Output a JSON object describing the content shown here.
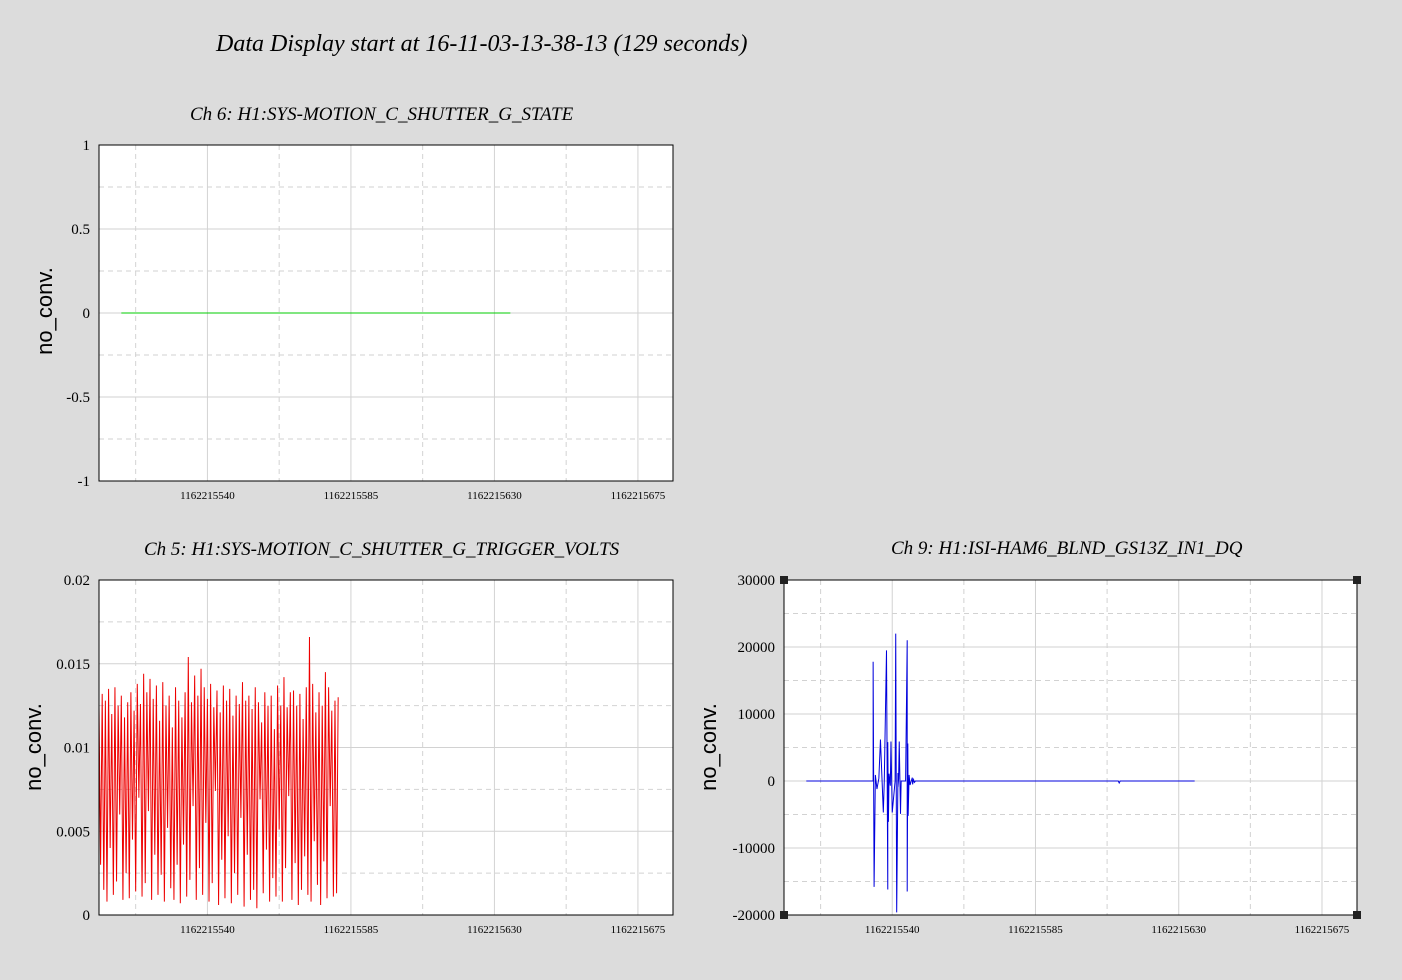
{
  "page_title": "Data Display start at 16-11-03-13-38-13 (129 seconds)",
  "chart_data": [
    {
      "id": "ch6",
      "type": "line",
      "title": "Ch 6: H1:SYS-MOTION_C_SHUTTER_G_STATE",
      "ylabel": "no_conv.",
      "xlim": [
        1162215506,
        1162215686
      ],
      "ylim": [
        -1,
        1
      ],
      "yticks": [
        1,
        0.5,
        0,
        -0.5,
        -1
      ],
      "ytick_labels": [
        "1",
        "0.5",
        "0",
        "-0.5",
        "-1"
      ],
      "xticks": [
        1162215540,
        1162215585,
        1162215630,
        1162215675
      ],
      "xtick_labels": [
        "1162215540",
        "1162215585",
        "1162215630",
        "1162215675"
      ],
      "grid": true,
      "series": [
        {
          "color": "#00cc00",
          "x": [
            1162215513,
            1162215635
          ],
          "y": [
            0,
            0
          ]
        }
      ]
    },
    {
      "id": "ch5",
      "type": "line",
      "title": "Ch 5: H1:SYS-MOTION_C_SHUTTER_G_TRIGGER_VOLTS",
      "ylabel": "no_conv.",
      "xlim": [
        1162215506,
        1162215686
      ],
      "ylim": [
        0,
        0.02
      ],
      "yticks": [
        0.02,
        0.015,
        0.01,
        0.005,
        0
      ],
      "ytick_labels": [
        "0.02",
        "0.015",
        "0.01",
        "0.005",
        "0"
      ],
      "xticks": [
        1162215540,
        1162215585,
        1162215630,
        1162215675
      ],
      "xtick_labels": [
        "1162215540",
        "1162215585",
        "1162215630",
        "1162215675"
      ],
      "grid": true,
      "series": [
        {
          "color": "#ee0000",
          "x_start": 1162215506,
          "x_step": 0.5,
          "y": [
            0.0125,
            0.003,
            0.0132,
            0.0015,
            0.0128,
            0.0008,
            0.0135,
            0.004,
            0.012,
            0.0012,
            0.0136,
            0.002,
            0.0125,
            0.006,
            0.0131,
            0.0009,
            0.0118,
            0.0025,
            0.0127,
            0.001,
            0.0133,
            0.0045,
            0.0122,
            0.0014,
            0.0138,
            0.007,
            0.0126,
            0.0011,
            0.0144,
            0.0019,
            0.0133,
            0.0062,
            0.0141,
            0.0009,
            0.0129,
            0.0036,
            0.0137,
            0.0012,
            0.0116,
            0.0024,
            0.0139,
            0.0008,
            0.0125,
            0.0052,
            0.0131,
            0.0016,
            0.0112,
            0.0009,
            0.0136,
            0.003,
            0.0128,
            0.0007,
            0.0118,
            0.0042,
            0.0133,
            0.0011,
            0.0154,
            0.0021,
            0.0127,
            0.0065,
            0.0143,
            0.0009,
            0.0131,
            0.0028,
            0.0147,
            0.0012,
            0.0136,
            0.0055,
            0.0129,
            0.0008,
            0.0138,
            0.0019,
            0.0124,
            0.0074,
            0.0134,
            0.0006,
            0.0121,
            0.0033,
            0.0137,
            0.001,
            0.0128,
            0.0047,
            0.0135,
            0.0007,
            0.0119,
            0.0025,
            0.0131,
            0.0012,
            0.0126,
            0.0058,
            0.0139,
            0.0005,
            0.0128,
            0.0036,
            0.0131,
            0.0009,
            0.0123,
            0.0015,
            0.0136,
            0.0004,
            0.0127,
            0.0069,
            0.0115,
            0.0013,
            0.0133,
            0.0039,
            0.0125,
            0.0008,
            0.0131,
            0.0022,
            0.0111,
            0.0011,
            0.0137,
            0.0051,
            0.0125,
            0.0008,
            0.0142,
            0.0028,
            0.0124,
            0.0071,
            0.0133,
            0.0009,
            0.0134,
            0.0031,
            0.0125,
            0.0006,
            0.0132,
            0.0015,
            0.0117,
            0.0035,
            0.0136,
            0.0012,
            0.0166,
            0.0008,
            0.0138,
            0.0044,
            0.0121,
            0.0018,
            0.0133,
            0.0006,
            0.0125,
            0.0032,
            0.0145,
            0.001,
            0.0136,
            0.0065,
            0.0122,
            0.0011,
            0.0128,
            0.0013,
            0.013
          ]
        }
      ]
    },
    {
      "id": "ch9",
      "type": "line",
      "title": "Ch 9: H1:ISI-HAM6_BLND_GS13Z_IN1_DQ",
      "ylabel": "no_conv.",
      "xlim": [
        1162215506,
        1162215686
      ],
      "ylim": [
        -20000,
        30000
      ],
      "yticks": [
        30000,
        20000,
        10000,
        0,
        -10000,
        -20000
      ],
      "ytick_labels": [
        "30000",
        "20000",
        "10000",
        "0",
        "-10000",
        "-20000"
      ],
      "xticks": [
        1162215540,
        1162215585,
        1162215630,
        1162215675
      ],
      "xtick_labels": [
        "1162215540",
        "1162215585",
        "1162215630",
        "1162215675"
      ],
      "grid": true,
      "series": [
        {
          "color": "#0000dd",
          "x": [
            1162215513,
            1162215534,
            1162215534,
            1162215534.3,
            1162215534.7,
            1162215535.2,
            1162215535.8,
            1162215536.3,
            1162215537.2,
            1162215537.5,
            1162215538.2,
            1162215538.6,
            1162215538.6,
            1162215538.8,
            1162215539,
            1162215539.4,
            1162215539.6,
            1162215540,
            1162215540.9,
            1162215541.1,
            1162215541.4,
            1162215541.8,
            1162215541.8,
            1162215542,
            1162215542.2,
            1162215542.6,
            1162215542.8,
            1162215543.4,
            1162215544.2,
            1162215544.7,
            1162215544.7,
            1162215544.9,
            1162215545,
            1162215545.3,
            1162215545.6,
            1162215546.3,
            1162215546.4,
            1162215546.7,
            1162215547,
            1162215547.3,
            1162215548,
            1162215555,
            1162215555.3,
            1162215555.7,
            1162215556.2,
            1162215556.8,
            1162215557.1,
            1162215557.5,
            1162215558,
            1162215559,
            1162215611,
            1162215611.3,
            1162215611.6,
            1162215635
          ],
          "y": [
            0,
            0,
            17800,
            -15800,
            900,
            -1200,
            400,
            6200,
            -4700,
            0,
            19500,
            -16200,
            5800,
            -6100,
            1100,
            -700,
            5900,
            -4700,
            0,
            22000,
            -19600,
            1200,
            -900,
            300,
            5900,
            -4900,
            0,
            0,
            0,
            21000,
            -16500,
            5600,
            -5200,
            900,
            -600,
            500,
            -500,
            200,
            -200,
            0,
            0,
            0,
            0,
            0,
            0,
            0,
            0,
            0,
            0,
            0,
            0,
            -300,
            0,
            0
          ]
        }
      ]
    }
  ]
}
